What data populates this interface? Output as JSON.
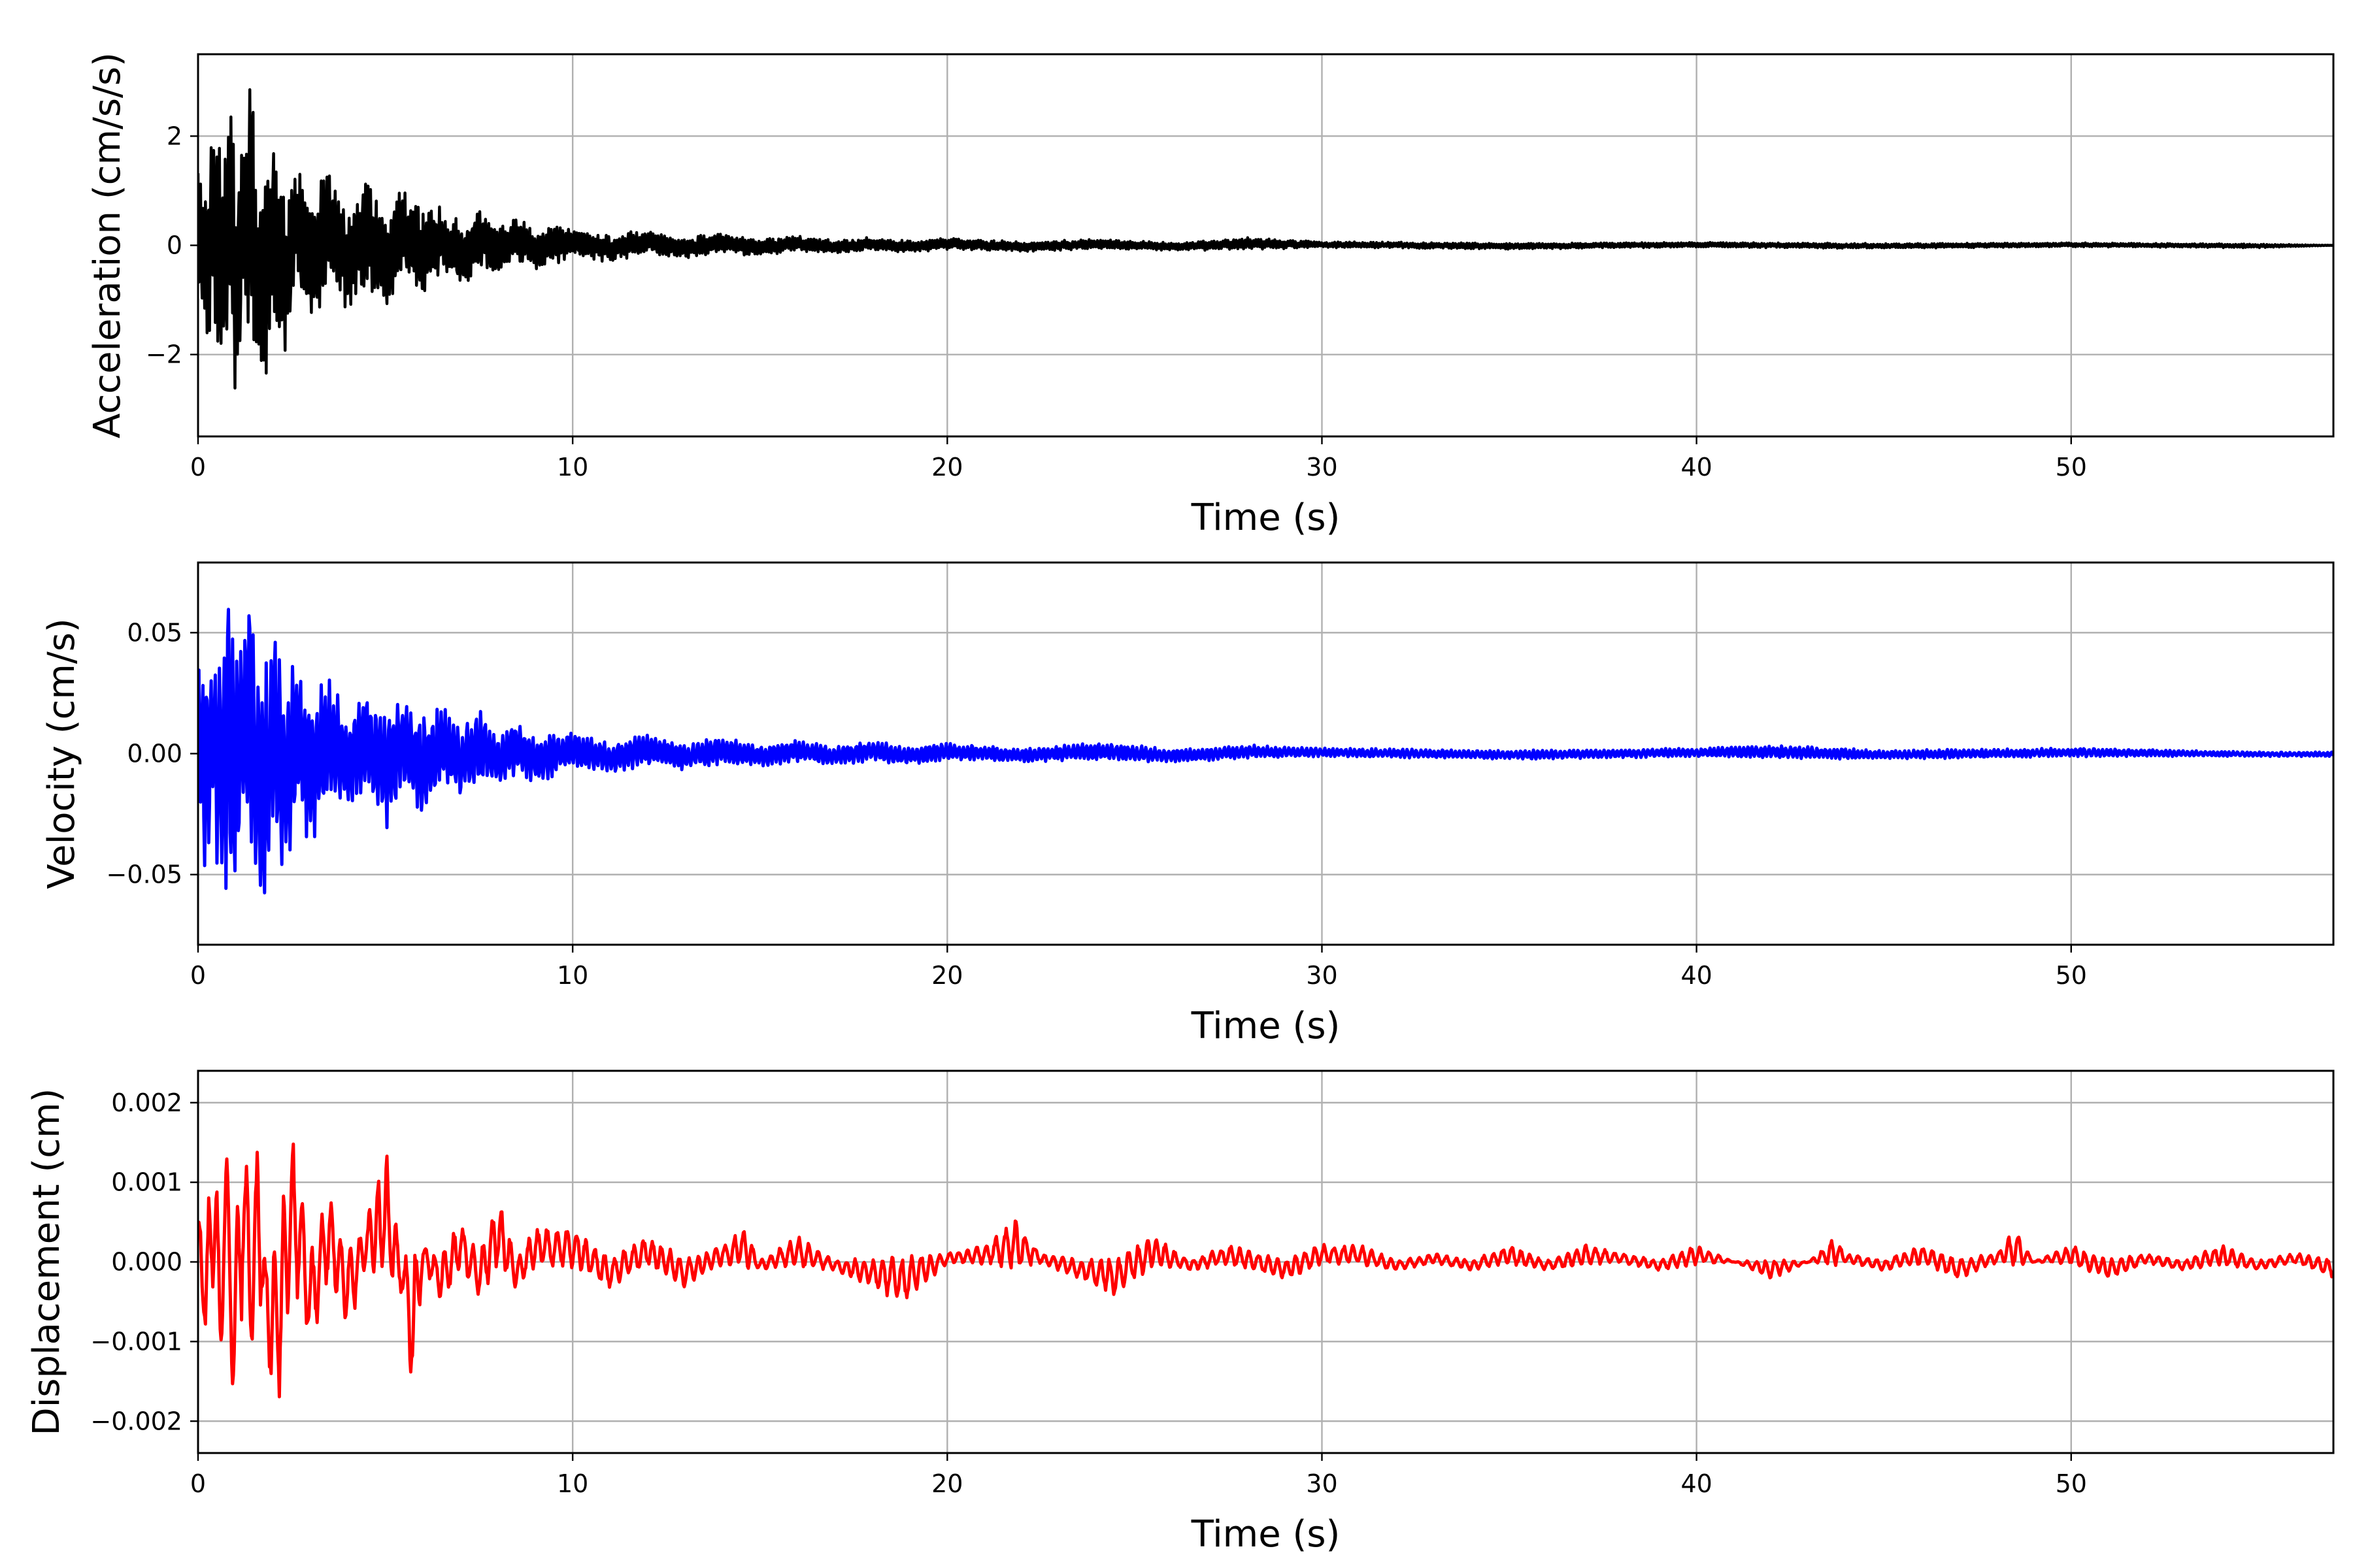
{
  "chart_data": [
    {
      "type": "line",
      "title": "",
      "xlabel": "Time (s)",
      "ylabel": "Acceleration (cm/s/s)",
      "xlim": [
        0,
        57
      ],
      "ylim": [
        -3.5,
        3.5
      ],
      "xticks": [
        0,
        10,
        20,
        30,
        40,
        50
      ],
      "xtick_labels": [
        "0",
        "10",
        "20",
        "30",
        "40",
        "50"
      ],
      "yticks": [
        -2,
        0,
        2
      ],
      "ytick_labels": [
        "−2",
        "0",
        "2"
      ],
      "grid": true,
      "legend": "none",
      "series": [
        {
          "color": "#000000",
          "x": [
            0,
            0.2,
            0.4,
            0.6,
            0.85,
            1.0,
            1.2,
            1.45,
            1.6,
            1.8,
            2.0,
            2.3,
            2.6,
            3.0,
            3.5,
            4.0,
            4.5,
            5.0,
            5.5,
            6.0,
            6.5,
            7.0,
            7.5,
            8.0,
            8.5,
            9.0,
            10,
            11,
            12,
            13,
            14,
            15,
            16,
            17,
            18,
            19,
            20,
            22,
            24,
            26,
            28,
            30,
            35,
            40,
            45,
            50,
            55,
            57
          ],
          "y": [
            1.7,
            -1.6,
            2.0,
            -2.4,
            2.4,
            -3.2,
            1.9,
            2.8,
            -2.1,
            -2.2,
            1.8,
            -1.9,
            1.4,
            -1.5,
            1.3,
            -1.0,
            1.1,
            -1.1,
            0.9,
            -1.0,
            0.6,
            -0.7,
            0.6,
            -0.5,
            0.5,
            -0.4,
            0.32,
            -0.28,
            0.25,
            -0.22,
            0.2,
            -0.18,
            0.15,
            -0.14,
            0.13,
            -0.12,
            0.12,
            -0.1,
            0.1,
            -0.08,
            0.12,
            0.06,
            -0.06,
            0.05,
            -0.05,
            0.04,
            -0.04,
            0.0
          ]
        }
      ]
    },
    {
      "type": "line",
      "title": "",
      "xlabel": "Time (s)",
      "ylabel": "Velocity (cm/s)",
      "xlim": [
        0,
        57
      ],
      "ylim": [
        -0.079,
        0.079
      ],
      "xticks": [
        0,
        10,
        20,
        30,
        40,
        50
      ],
      "xtick_labels": [
        "0",
        "10",
        "20",
        "30",
        "40",
        "50"
      ],
      "yticks": [
        -0.05,
        0.0,
        0.05
      ],
      "ytick_labels": [
        "−0.05",
        "0.00",
        "0.05"
      ],
      "grid": true,
      "legend": "none",
      "series": [
        {
          "color": "#0000ff",
          "x": [
            0,
            0.2,
            0.4,
            0.6,
            0.85,
            1.0,
            1.2,
            1.45,
            1.6,
            1.8,
            2.0,
            2.3,
            2.6,
            3.0,
            3.5,
            4.0,
            4.5,
            5.0,
            5.5,
            6.0,
            6.5,
            7.0,
            7.5,
            8.0,
            8.5,
            9.0,
            10,
            11,
            12,
            13,
            14,
            15,
            16,
            17,
            18,
            19,
            20,
            22,
            24,
            26,
            28,
            30,
            35,
            40,
            42,
            45,
            50,
            55,
            57
          ],
          "y": [
            0.04,
            -0.05,
            0.034,
            -0.057,
            0.072,
            -0.058,
            0.046,
            0.057,
            -0.06,
            -0.052,
            0.046,
            -0.052,
            0.035,
            -0.034,
            0.03,
            -0.022,
            0.022,
            -0.028,
            0.02,
            -0.024,
            0.017,
            -0.015,
            0.018,
            -0.012,
            0.012,
            -0.011,
            0.008,
            -0.007,
            0.007,
            -0.006,
            0.006,
            -0.005,
            0.005,
            -0.004,
            0.005,
            -0.004,
            0.004,
            -0.003,
            0.004,
            -0.003,
            0.003,
            0.002,
            -0.002,
            0.002,
            0.003,
            -0.002,
            0.002,
            -0.001,
            -0.001
          ]
        }
      ]
    },
    {
      "type": "line",
      "title": "",
      "xlabel": "Time (s)",
      "ylabel": "Displacement (cm)",
      "xlim": [
        0,
        57
      ],
      "ylim": [
        -0.0024,
        0.0024
      ],
      "xticks": [
        0,
        10,
        20,
        30,
        40,
        50
      ],
      "xtick_labels": [
        "0",
        "10",
        "20",
        "30",
        "40",
        "50"
      ],
      "yticks": [
        -0.002,
        -0.001,
        0.0,
        0.001,
        0.002
      ],
      "ytick_labels": [
        "−0.002",
        "−0.001",
        "0.000",
        "0.001",
        "0.002"
      ],
      "grid": true,
      "legend": "none",
      "series": [
        {
          "color": "#ff0000",
          "x": [
            0,
            0.2,
            0.4,
            0.6,
            0.75,
            1.0,
            1.2,
            1.45,
            1.6,
            1.8,
            2.1,
            2.5,
            3.0,
            3.5,
            4.0,
            4.5,
            5.0,
            5.4,
            5.75,
            6.0,
            6.5,
            7.0,
            7.5,
            8.0,
            8.5,
            9.0,
            10,
            11,
            12,
            13,
            14,
            14.6,
            15,
            16,
            17,
            18,
            18.8,
            20,
            21,
            21.8,
            22.5,
            23.5,
            24.5,
            25.5,
            26.5,
            27.5,
            29,
            30,
            31,
            32,
            33,
            34,
            35,
            36,
            37,
            38,
            39,
            40,
            41,
            42,
            43,
            43.7,
            44,
            45,
            46,
            47,
            48,
            48.5,
            49,
            50,
            51,
            52,
            53,
            54,
            55,
            56,
            57
          ],
          "y": [
            0.0006,
            -0.001,
            0.0015,
            -0.0011,
            0.0015,
            -0.0022,
            0.0019,
            -0.0011,
            0.0016,
            -0.0012,
            -0.0019,
            0.0015,
            -0.001,
            0.0008,
            -0.0008,
            0.0005,
            0.0014,
            -0.0003,
            -0.0016,
            0.0002,
            -0.0005,
            0.0005,
            -0.0004,
            0.0008,
            -0.0003,
            0.0004,
            0.0004,
            -0.0003,
            0.0003,
            -0.0003,
            0.0002,
            0.0004,
            -0.0001,
            0.0003,
            -0.0001,
            -0.0003,
            -0.0005,
            0.0001,
            0.0002,
            0.0005,
            0.0001,
            -0.0002,
            -0.0004,
            0.0003,
            -0.0001,
            0.0002,
            -0.0002,
            0.0002,
            0.0002,
            -0.0001,
            0.0001,
            -0.0001,
            0.0002,
            -0.0001,
            0.0002,
            0.0001,
            -0.0001,
            0.0002,
            0.0,
            -0.0002,
            0.0,
            0.0003,
            0.0001,
            -0.0001,
            0.0002,
            -0.0002,
            0.0001,
            0.0004,
            0.0,
            0.0002,
            -0.0002,
            0.0001,
            -0.0001,
            0.0002,
            -0.0001,
            0.0001,
            -0.0002
          ]
        }
      ]
    }
  ]
}
